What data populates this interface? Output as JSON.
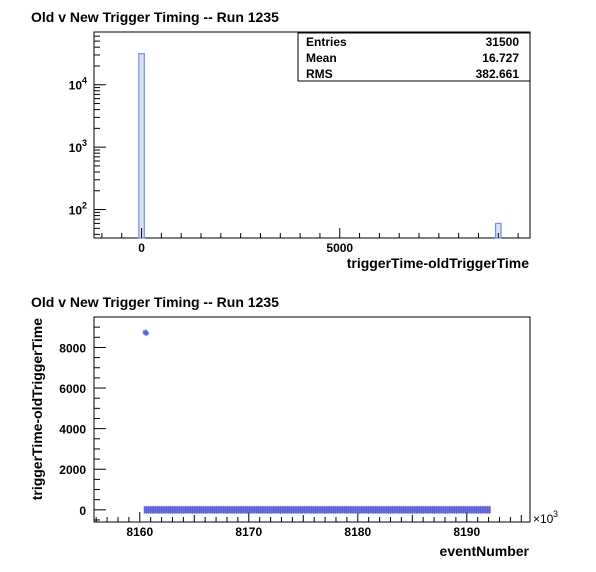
{
  "chart_data": [
    {
      "type": "bar",
      "title": "Old v New Trigger Timing -- Run 1235",
      "xlabel": "triggerTime-oldTriggerTime",
      "ylabel": "",
      "log_y": true,
      "xlim": [
        -1200,
        9800
      ],
      "ylim": [
        35,
        70000
      ],
      "x_ticks": [
        "0",
        "5000"
      ],
      "y_ticks": [
        {
          "base": "10",
          "exp": "2",
          "value": 100
        },
        {
          "base": "10",
          "exp": "3",
          "value": 1000
        },
        {
          "base": "10",
          "exp": "4",
          "value": 10000
        }
      ],
      "bin_width": 137.5,
      "bars": [
        {
          "x": 0,
          "value": 31440
        },
        {
          "x": 9000,
          "value": 60
        }
      ],
      "stats": {
        "rows": [
          {
            "label": "Entries",
            "value": "31500"
          },
          {
            "label": "Mean",
            "value": "16.727"
          },
          {
            "label": "RMS",
            "value": "382.661"
          }
        ]
      },
      "colors": {
        "fill": "#dde3f7",
        "line": "#6f8fd8"
      }
    },
    {
      "type": "scatter",
      "title": "Old v New Trigger Timing -- Run 1235",
      "xlabel": "eventNumber",
      "ylabel": "triggerTime-oldTriggerTime",
      "x_multiplier_label": "×10",
      "x_multiplier_exp": "3",
      "xlim": [
        8155800,
        8195800
      ],
      "ylim": [
        -600,
        9500
      ],
      "x_ticks": [
        "8160",
        "8170",
        "8180",
        "8190"
      ],
      "y_ticks": [
        "0",
        "2000",
        "4000",
        "6000",
        "8000"
      ],
      "series": [
        {
          "points": [
            {
              "x": 8160500,
              "y": 8750
            },
            {
              "x": 8160600,
              "y": 8700
            }
          ],
          "band": {
            "x_start": 8160400,
            "x_end": 8192200,
            "y": 0
          }
        }
      ],
      "colors": {
        "marker": "#5a5fd8"
      }
    }
  ]
}
